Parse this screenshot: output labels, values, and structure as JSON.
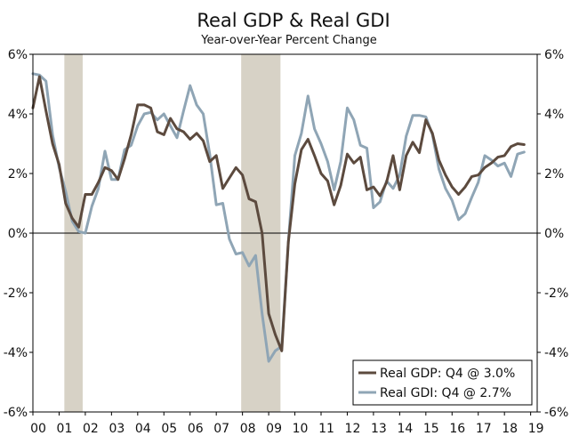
{
  "chart_data": {
    "type": "line",
    "title": "Real GDP & Real GDI",
    "subtitle": "Year-over-Year Percent Change",
    "xlabel": "",
    "ylabel": "",
    "ylim": [
      -6,
      6
    ],
    "xlim": [
      2000,
      2019.25
    ],
    "y_ticks": [
      6,
      4,
      2,
      0,
      -2,
      -4,
      -6
    ],
    "y_tick_labels": [
      "6%",
      "4%",
      "2%",
      "0%",
      "-2%",
      "-4%",
      "-6%"
    ],
    "x_ticks": [
      2000,
      2001,
      2002,
      2003,
      2004,
      2005,
      2006,
      2007,
      2008,
      2009,
      2010,
      2011,
      2012,
      2013,
      2014,
      2015,
      2016,
      2017,
      2018,
      2019
    ],
    "x_tick_labels": [
      "00",
      "01",
      "02",
      "03",
      "04",
      "05",
      "06",
      "07",
      "08",
      "09",
      "10",
      "11",
      "12",
      "13",
      "14",
      "15",
      "16",
      "17",
      "18",
      "19"
    ],
    "recessions": [
      {
        "start": 2001.2,
        "end": 2001.9
      },
      {
        "start": 2007.95,
        "end": 2009.45
      }
    ],
    "legend_position": "bottom-right",
    "series": [
      {
        "name": "Real GDP: Q4 @ 3.0%",
        "color": "#5c4a3e",
        "points": [
          [
            2000.0,
            4.2
          ],
          [
            2000.25,
            5.25
          ],
          [
            2000.5,
            4.1
          ],
          [
            2000.75,
            3.0
          ],
          [
            2001.0,
            2.3
          ],
          [
            2001.25,
            1.0
          ],
          [
            2001.5,
            0.5
          ],
          [
            2001.75,
            0.2
          ],
          [
            2002.0,
            1.3
          ],
          [
            2002.25,
            1.3
          ],
          [
            2002.5,
            1.7
          ],
          [
            2002.75,
            2.2
          ],
          [
            2003.0,
            2.1
          ],
          [
            2003.25,
            1.8
          ],
          [
            2003.5,
            2.5
          ],
          [
            2003.75,
            3.3
          ],
          [
            2004.0,
            4.3
          ],
          [
            2004.25,
            4.3
          ],
          [
            2004.5,
            4.2
          ],
          [
            2004.75,
            3.4
          ],
          [
            2005.0,
            3.3
          ],
          [
            2005.25,
            3.85
          ],
          [
            2005.5,
            3.5
          ],
          [
            2005.75,
            3.4
          ],
          [
            2006.0,
            3.15
          ],
          [
            2006.25,
            3.35
          ],
          [
            2006.5,
            3.1
          ],
          [
            2006.75,
            2.4
          ],
          [
            2007.0,
            2.6
          ],
          [
            2007.25,
            1.5
          ],
          [
            2007.5,
            1.85
          ],
          [
            2007.75,
            2.2
          ],
          [
            2008.0,
            1.95
          ],
          [
            2008.25,
            1.15
          ],
          [
            2008.5,
            1.05
          ],
          [
            2008.75,
            0.0
          ],
          [
            2009.0,
            -2.7
          ],
          [
            2009.25,
            -3.4
          ],
          [
            2009.5,
            -3.95
          ],
          [
            2009.75,
            -0.3
          ],
          [
            2010.0,
            1.65
          ],
          [
            2010.25,
            2.8
          ],
          [
            2010.5,
            3.15
          ],
          [
            2010.75,
            2.6
          ],
          [
            2011.0,
            2.0
          ],
          [
            2011.25,
            1.75
          ],
          [
            2011.5,
            0.95
          ],
          [
            2011.75,
            1.6
          ],
          [
            2012.0,
            2.65
          ],
          [
            2012.25,
            2.35
          ],
          [
            2012.5,
            2.55
          ],
          [
            2012.75,
            1.45
          ],
          [
            2013.0,
            1.55
          ],
          [
            2013.25,
            1.25
          ],
          [
            2013.5,
            1.7
          ],
          [
            2013.75,
            2.6
          ],
          [
            2014.0,
            1.45
          ],
          [
            2014.25,
            2.6
          ],
          [
            2014.5,
            3.05
          ],
          [
            2014.75,
            2.7
          ],
          [
            2015.0,
            3.8
          ],
          [
            2015.25,
            3.35
          ],
          [
            2015.5,
            2.45
          ],
          [
            2015.75,
            1.95
          ],
          [
            2016.0,
            1.55
          ],
          [
            2016.25,
            1.3
          ],
          [
            2016.5,
            1.55
          ],
          [
            2016.75,
            1.9
          ],
          [
            2017.0,
            1.95
          ],
          [
            2017.25,
            2.2
          ],
          [
            2017.5,
            2.35
          ],
          [
            2017.75,
            2.55
          ],
          [
            2018.0,
            2.6
          ],
          [
            2018.25,
            2.9
          ],
          [
            2018.5,
            3.0
          ],
          [
            2018.75,
            2.97
          ]
        ]
      },
      {
        "name": "Real GDI: Q4 @ 2.7%",
        "color": "#8fa5b5",
        "points": [
          [
            2000.0,
            5.35
          ],
          [
            2000.25,
            5.3
          ],
          [
            2000.5,
            5.1
          ],
          [
            2000.75,
            3.3
          ],
          [
            2001.0,
            2.2
          ],
          [
            2001.25,
            1.4
          ],
          [
            2001.5,
            0.4
          ],
          [
            2001.75,
            0.05
          ],
          [
            2002.0,
            0.0
          ],
          [
            2002.25,
            0.9
          ],
          [
            2002.5,
            1.5
          ],
          [
            2002.75,
            2.75
          ],
          [
            2003.0,
            1.8
          ],
          [
            2003.25,
            1.8
          ],
          [
            2003.5,
            2.8
          ],
          [
            2003.75,
            2.95
          ],
          [
            2004.0,
            3.6
          ],
          [
            2004.25,
            4.0
          ],
          [
            2004.5,
            4.05
          ],
          [
            2004.75,
            3.8
          ],
          [
            2005.0,
            4.0
          ],
          [
            2005.25,
            3.6
          ],
          [
            2005.5,
            3.2
          ],
          [
            2005.75,
            4.1
          ],
          [
            2006.0,
            4.95
          ],
          [
            2006.25,
            4.3
          ],
          [
            2006.5,
            4.0
          ],
          [
            2006.75,
            2.65
          ],
          [
            2007.0,
            0.95
          ],
          [
            2007.25,
            1.0
          ],
          [
            2007.5,
            -0.2
          ],
          [
            2007.75,
            -0.7
          ],
          [
            2008.0,
            -0.65
          ],
          [
            2008.25,
            -1.1
          ],
          [
            2008.5,
            -0.75
          ],
          [
            2008.75,
            -2.7
          ],
          [
            2009.0,
            -4.3
          ],
          [
            2009.25,
            -3.95
          ],
          [
            2009.5,
            -3.8
          ],
          [
            2009.75,
            -0.3
          ],
          [
            2010.0,
            2.6
          ],
          [
            2010.25,
            3.35
          ],
          [
            2010.5,
            4.6
          ],
          [
            2010.75,
            3.5
          ],
          [
            2011.0,
            3.0
          ],
          [
            2011.25,
            2.4
          ],
          [
            2011.5,
            1.45
          ],
          [
            2011.75,
            2.4
          ],
          [
            2012.0,
            4.2
          ],
          [
            2012.25,
            3.8
          ],
          [
            2012.5,
            2.95
          ],
          [
            2012.75,
            2.85
          ],
          [
            2013.0,
            0.85
          ],
          [
            2013.25,
            1.05
          ],
          [
            2013.5,
            1.75
          ],
          [
            2013.75,
            1.5
          ],
          [
            2014.0,
            1.95
          ],
          [
            2014.25,
            3.25
          ],
          [
            2014.5,
            3.95
          ],
          [
            2014.75,
            3.95
          ],
          [
            2015.0,
            3.9
          ],
          [
            2015.25,
            3.3
          ],
          [
            2015.5,
            2.15
          ],
          [
            2015.75,
            1.5
          ],
          [
            2016.0,
            1.1
          ],
          [
            2016.25,
            0.45
          ],
          [
            2016.5,
            0.65
          ],
          [
            2016.75,
            1.2
          ],
          [
            2017.0,
            1.7
          ],
          [
            2017.25,
            2.6
          ],
          [
            2017.5,
            2.45
          ],
          [
            2017.75,
            2.25
          ],
          [
            2018.0,
            2.35
          ],
          [
            2018.25,
            1.9
          ],
          [
            2018.5,
            2.65
          ],
          [
            2018.75,
            2.72
          ]
        ]
      }
    ]
  }
}
